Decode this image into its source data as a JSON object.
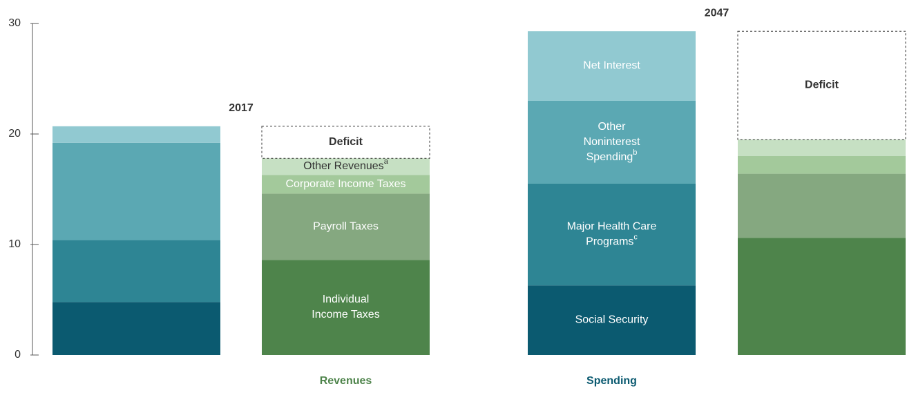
{
  "chart_data": {
    "type": "stacked_bar",
    "categories": [
      null,
      "Revenues",
      "Spending",
      null
    ],
    "category_colors": [
      null,
      "#4e844b",
      "#0b5a70",
      null
    ],
    "annotations": [
      "2017",
      "2047"
    ],
    "ylim": [
      0,
      30
    ],
    "yticks": [
      0,
      10,
      20,
      30
    ],
    "series": [
      {
        "name": [
          "Social Security"
        ],
        "color": "#0b5a70",
        "text_color": "#ffffff",
        "values": [
          4.8,
          null,
          6.3,
          null
        ]
      },
      {
        "name": [
          "Major Health Care",
          "Programs"
        ],
        "note": "c",
        "color": "#2e8594",
        "text_color": "#ffffff",
        "values": [
          5.6,
          null,
          9.2,
          null
        ]
      },
      {
        "name": [
          "Other",
          "Noninterest",
          "Spending"
        ],
        "note": "b",
        "color": "#5ba8b3",
        "text_color": "#ffffff",
        "values": [
          8.8,
          null,
          7.5,
          null
        ]
      },
      {
        "name": [
          "Net Interest"
        ],
        "color": "#91c9d1",
        "text_color": "#ffffff",
        "values": [
          1.5,
          null,
          6.3,
          null
        ]
      },
      {
        "name": [
          "Individual",
          "Income Taxes"
        ],
        "color": "#4e844b",
        "text_color": "#ffffff",
        "values": [
          null,
          8.6,
          null,
          10.6
        ]
      },
      {
        "name": [
          "Payroll Taxes"
        ],
        "color": "#85a880",
        "text_color": "#ffffff",
        "values": [
          null,
          6.0,
          null,
          5.8
        ]
      },
      {
        "name": [
          "Corporate Income Taxes"
        ],
        "color": "#a3c99b",
        "text_color": "#ffffff",
        "values": [
          null,
          1.7,
          null,
          1.6
        ]
      },
      {
        "name": [
          "Other Revenues"
        ],
        "note": "a",
        "color": "#c6e0c3",
        "text_color": "#333333",
        "values": [
          null,
          1.5,
          null,
          1.5
        ]
      },
      {
        "name": [
          "Deficit"
        ],
        "color": "#ffffff",
        "text_color": "#333333",
        "dashed": true,
        "values": [
          null,
          2.9,
          null,
          9.8
        ]
      }
    ]
  }
}
